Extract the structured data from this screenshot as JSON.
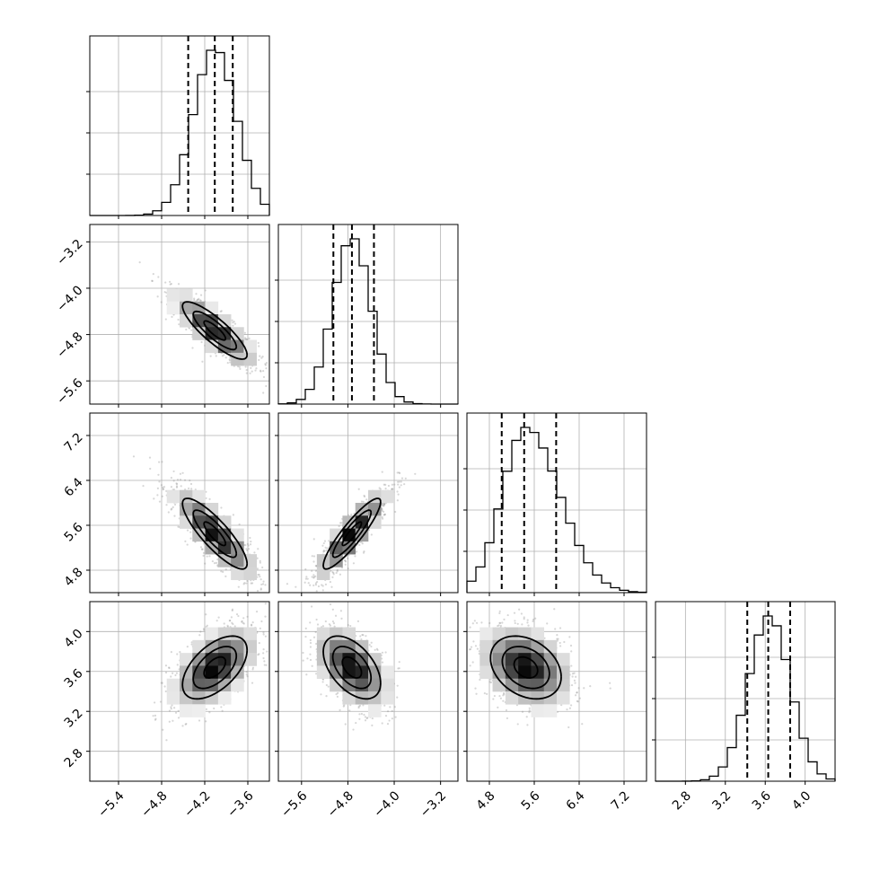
{
  "chart_data": {
    "type": "corner",
    "title": "",
    "parameters": [
      {
        "index": 0,
        "range": [
          -5.8,
          -3.3
        ],
        "ticks": [
          "−5.4",
          "−4.8",
          "−4.2",
          "−3.6"
        ],
        "tick_values": [
          -5.4,
          -4.8,
          -4.2,
          -3.6
        ],
        "quantiles": [
          -4.43,
          -4.06,
          -3.81
        ],
        "mean": -4.06,
        "sd": 0.3
      },
      {
        "index": 1,
        "range": [
          -6.0,
          -2.9
        ],
        "ticks": [
          "−5.6",
          "−4.8",
          "−4.0",
          "−3.2"
        ],
        "tick_values": [
          -5.6,
          -4.8,
          -4.0,
          -3.2
        ],
        "quantiles": [
          -5.05,
          -4.73,
          -4.35
        ],
        "mean": -4.73,
        "sd": 0.33
      },
      {
        "index": 2,
        "range": [
          4.4,
          7.6
        ],
        "ticks": [
          "4.8",
          "5.6",
          "6.4",
          "7.2"
        ],
        "tick_values": [
          4.8,
          5.6,
          6.4,
          7.2
        ],
        "quantiles": [
          5.02,
          5.42,
          5.99
        ],
        "mean": 5.45,
        "sd": 0.42
      },
      {
        "index": 3,
        "range": [
          2.5,
          4.3
        ],
        "ticks": [
          "2.8",
          "3.2",
          "3.6",
          "4.0"
        ],
        "tick_values": [
          2.8,
          3.2,
          3.6,
          4.0
        ],
        "quantiles": [
          3.42,
          3.63,
          3.85
        ],
        "mean": 3.64,
        "sd": 0.21
      }
    ],
    "correlations": [
      [
        1,
        -0.85,
        -0.85,
        0.55
      ],
      [
        -0.85,
        1,
        0.9,
        -0.5
      ],
      [
        -0.85,
        0.9,
        1,
        -0.3
      ],
      [
        0.55,
        -0.5,
        -0.3,
        1
      ]
    ],
    "histogram_bins": 20,
    "contour_levels": [
      0.5,
      1.0,
      1.5
    ],
    "quantile_levels": [
      0.16,
      0.5,
      0.84
    ],
    "grid": true,
    "legend": "none"
  }
}
